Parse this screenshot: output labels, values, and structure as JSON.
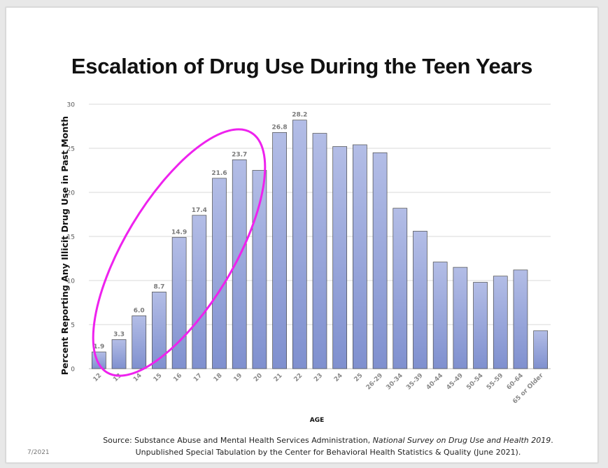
{
  "title": "Escalation of Drug Use During the Teen Years",
  "source": {
    "line1_prefix": "Source:  Substance Abuse and Mental Health Services Administration, ",
    "line1_italic": "National Survey on Drug Use and Health 2019",
    "line1_suffix": ".",
    "line2": "Unpublished Special Tabulation by the Center for Behavioral Health Statistics & Quality (June 2021)."
  },
  "date": "7/2021",
  "colors": {
    "bar_top": "#b3bde6",
    "bar_bottom": "#7f90cf",
    "bar_stroke": "#4a4a4a",
    "highlight_ellipse": "#ee22ee",
    "grid": "#d9d9d9"
  },
  "chart_data": {
    "type": "bar",
    "xlabel": "AGE",
    "ylabel": "Percent Reporting Any Illicit Drug Use in Past Month",
    "ylim": [
      0,
      30
    ],
    "yticks": [
      0,
      5,
      10,
      15,
      20,
      25,
      30
    ],
    "grid": true,
    "categories": [
      "12",
      "13",
      "14",
      "15",
      "16",
      "17",
      "18",
      "19",
      "20",
      "21",
      "22",
      "23",
      "24",
      "25",
      "26-29",
      "30-34",
      "35-39",
      "40-44",
      "45-49",
      "50-54",
      "55-59",
      "60-64",
      "65 or Older"
    ],
    "values": [
      1.9,
      3.3,
      6.0,
      8.7,
      14.9,
      17.4,
      21.6,
      23.7,
      22.5,
      26.8,
      28.2,
      26.7,
      25.2,
      25.4,
      24.5,
      18.2,
      15.6,
      12.1,
      11.5,
      9.8,
      10.5,
      11.2,
      4.3
    ],
    "data_labels": [
      "1.9",
      "3.3",
      "6.0",
      "8.7",
      "14.9",
      "17.4",
      "21.6",
      "23.7",
      "",
      "26.8",
      "28.2",
      "",
      "",
      "",
      "",
      "",
      "",
      "",
      "",
      "",
      "",
      "",
      ""
    ],
    "highlight": "ages 12-19 circled"
  }
}
